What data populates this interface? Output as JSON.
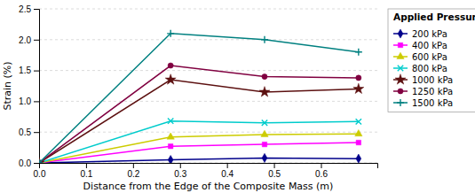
{
  "chart_data": {
    "type": "line",
    "title": "Applied Pressure:",
    "xlabel": "Distance from the Edge of the Composite Mass (m)",
    "ylabel": "Strain (%)",
    "xlim": [
      0.0,
      0.72
    ],
    "ylim": [
      0.0,
      2.5
    ],
    "xticks": [
      {
        "value": 0.0,
        "label": "0.0"
      },
      0.1,
      0.2,
      0.3,
      0.4,
      0.5,
      0.6
    ],
    "yticks": [
      {
        "value": 0.0,
        "label": "0.0"
      },
      0.5,
      {
        "value": 1.0,
        "label": "1.0"
      },
      1.5,
      {
        "value": 2.0,
        "label": "2.0"
      },
      2.5
    ],
    "grid": "y",
    "legend": "right",
    "x": [
      0.0,
      0.28,
      0.48,
      0.68
    ],
    "series": [
      {
        "name": "200 kPa",
        "color": "#00008B",
        "marker": "diamond",
        "values": [
          0.0,
          0.05,
          0.08,
          0.07
        ]
      },
      {
        "name": "400 kPa",
        "color": "#FF00FF",
        "marker": "square",
        "values": [
          0.0,
          0.27,
          0.3,
          0.33
        ]
      },
      {
        "name": "600 kPa",
        "color": "#CCCC00",
        "marker": "triangle",
        "values": [
          0.0,
          0.42,
          0.46,
          0.47
        ]
      },
      {
        "name": "800 kPa",
        "color": "#00CCCC",
        "marker": "x",
        "values": [
          0.0,
          0.68,
          0.65,
          0.67
        ]
      },
      {
        "name": "1000 kPa",
        "color": "#5C1010",
        "marker": "star",
        "values": [
          0.0,
          1.35,
          1.15,
          1.2
        ]
      },
      {
        "name": "1250 kPa",
        "color": "#800040",
        "marker": "circle",
        "values": [
          0.0,
          1.58,
          1.4,
          1.38
        ]
      },
      {
        "name": "1500 kPa",
        "color": "#008080",
        "marker": "plus",
        "values": [
          0.0,
          2.1,
          2.0,
          1.8
        ]
      }
    ]
  }
}
